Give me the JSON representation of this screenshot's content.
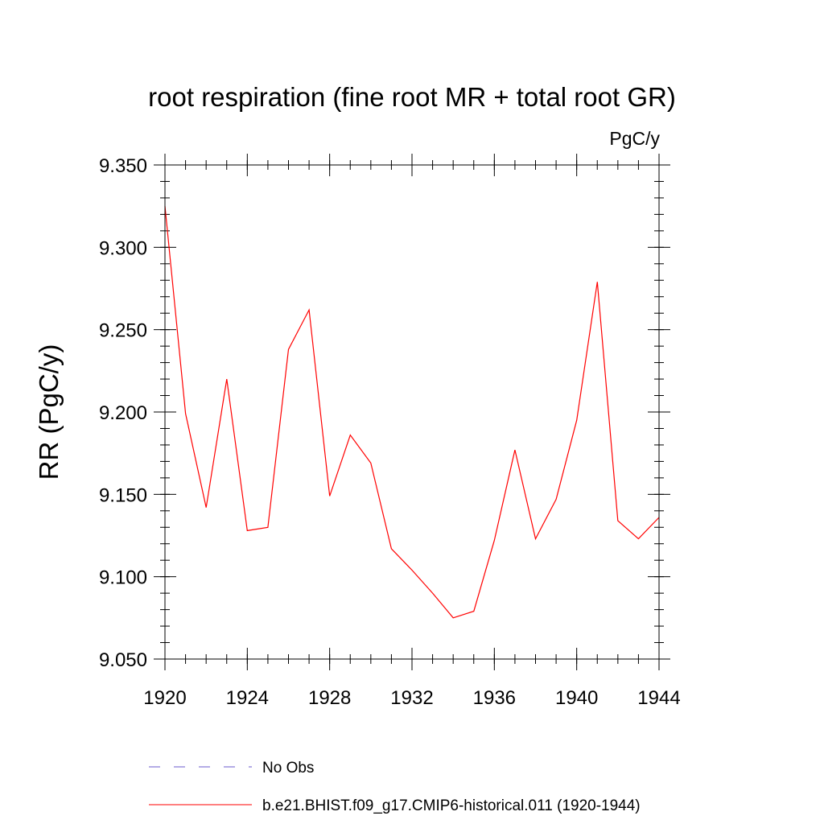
{
  "chart_data": {
    "type": "line",
    "title": "root respiration (fine root MR + total root GR)",
    "units_label": "PgC/y",
    "ylabel": "RR  (PgC/y)",
    "xlabel": "",
    "xlim": [
      1920,
      1944
    ],
    "ylim": [
      9.05,
      9.35
    ],
    "x_ticks": [
      1920,
      1924,
      1928,
      1932,
      1936,
      1940,
      1944
    ],
    "x_tick_labels": [
      "1920",
      "1924",
      "1928",
      "1932",
      "1936",
      "1940",
      "1944"
    ],
    "y_ticks": [
      9.05,
      9.1,
      9.15,
      9.2,
      9.25,
      9.3,
      9.35
    ],
    "y_tick_labels": [
      "9.050",
      "9.100",
      "9.150",
      "9.200",
      "9.250",
      "9.300",
      "9.350"
    ],
    "x_minor_step": 1,
    "y_minor_step": 0.01,
    "grid": false,
    "legend_position": "bottom",
    "series": [
      {
        "name": "b.e21.BHIST.f09_g17.CMIP6-historical.011 (1920-1944)",
        "color": "#ff0000",
        "dash": "solid",
        "x": [
          1920,
          1921,
          1922,
          1923,
          1924,
          1925,
          1926,
          1927,
          1928,
          1929,
          1930,
          1931,
          1932,
          1933,
          1934,
          1935,
          1936,
          1937,
          1938,
          1939,
          1940,
          1941,
          1942,
          1943,
          1944
        ],
        "y": [
          9.325,
          9.199,
          9.142,
          9.22,
          9.128,
          9.13,
          9.238,
          9.262,
          9.149,
          9.186,
          9.169,
          9.117,
          9.104,
          9.09,
          9.075,
          9.079,
          9.122,
          9.177,
          9.123,
          9.147,
          9.195,
          9.279,
          9.134,
          9.123,
          9.136
        ]
      }
    ],
    "legend": [
      {
        "label": "No Obs",
        "color": "#6a5acd",
        "dash": "dashed"
      },
      {
        "label": "b.e21.BHIST.f09_g17.CMIP6-historical.011 (1920-1944)",
        "color": "#ff0000",
        "dash": "solid"
      }
    ]
  }
}
